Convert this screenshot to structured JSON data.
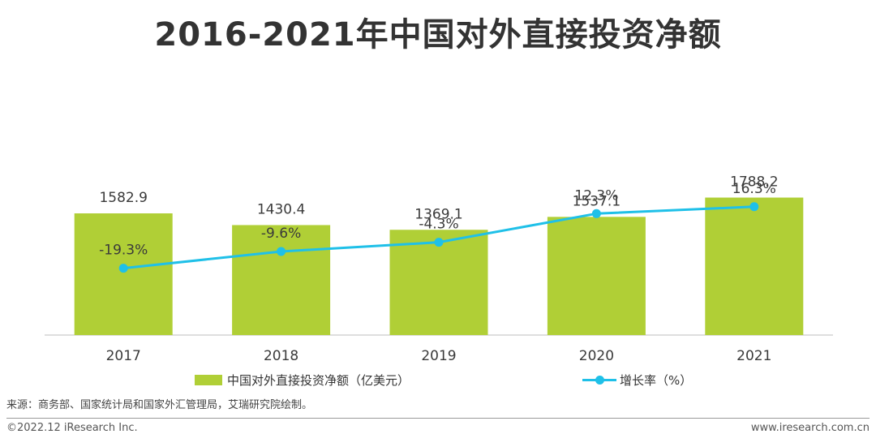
{
  "title": "2016-2021年中国对外直接投资净额",
  "chart_data": {
    "type": "bar",
    "categories": [
      "2017",
      "2018",
      "2019",
      "2020",
      "2021"
    ],
    "series": [
      {
        "name": "中国对外直接投资净额（亿美元）",
        "kind": "bar",
        "values": [
          1582.9,
          1430.4,
          1369.1,
          1537.1,
          1788.2
        ],
        "labels": [
          "1582.9",
          "1430.4",
          "1369.1",
          "1537.1",
          "1788.2"
        ],
        "color": "#b0cf36"
      },
      {
        "name": "增长率（%）",
        "kind": "line",
        "values": [
          -19.3,
          -9.6,
          -4.3,
          12.3,
          16.3
        ],
        "labels": [
          "-19.3%",
          "-9.6%",
          "-4.3%",
          "12.3%",
          "16.3%"
        ],
        "color": "#1fc0e8"
      }
    ],
    "bar_ylim": [
      0,
      2000
    ],
    "line_ylim": [
      -120,
      60
    ],
    "legend_position": "bottom"
  },
  "source_text": "来源：商务部、国家统计局和国家外汇管理局，艾瑞研究院绘制。",
  "copyright": "©2022.12 iResearch Inc.",
  "website": "www.iresearch.com.cn",
  "colors": {
    "axis": "#bdbdbd",
    "text": "#3a3a3a"
  }
}
